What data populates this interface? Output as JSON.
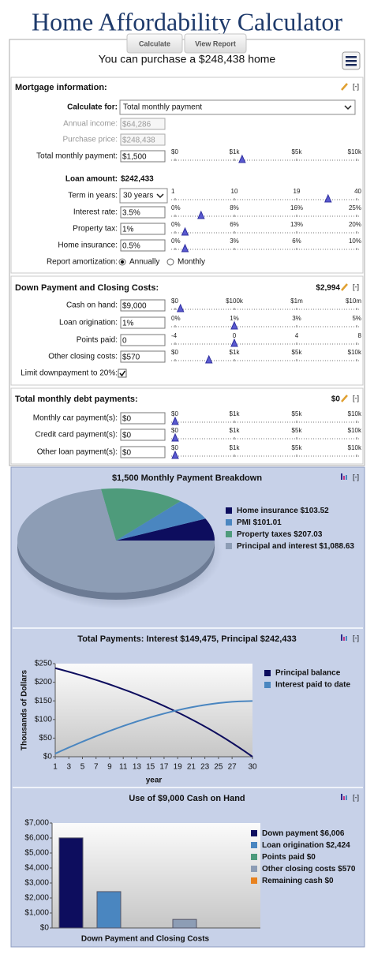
{
  "header": {
    "title": "Home Affordability Calculator",
    "buttons": [
      "Calculate",
      "View Report"
    ],
    "result": "You can purchase a $248,438 home"
  },
  "collapse": "[-]",
  "sections": [
    {
      "title": "Mortgage information:",
      "rows": [
        {
          "label": "Calculate for:",
          "kind": "select-wide",
          "input": "Total monthly payment"
        },
        {
          "label": "Annual income:",
          "kind": "disabled",
          "input": "$64,286"
        },
        {
          "label": "Purchase price:",
          "kind": "disabled",
          "input": "$248,438"
        },
        {
          "label": "Total monthly payment:",
          "kind": "text",
          "input": "$1,500",
          "slider": {
            "ticks": [
              {
                "value": 0,
                "label": "$0"
              },
              {
                "value": 1000,
                "label": "$1k"
              },
              {
                "value": 5000,
                "label": "$5k"
              },
              {
                "value": 10000,
                "label": "$10k"
              }
            ],
            "value": 1500
          }
        },
        {
          "label": "Loan amount:",
          "kind": "value",
          "input": "$242,433"
        },
        {
          "label": "Term in years:",
          "kind": "select",
          "input": "30 years",
          "slider": {
            "ticks": [
              1,
              10,
              19,
              40
            ],
            "value": 30
          }
        },
        {
          "label": "Interest rate:",
          "kind": "text",
          "input": "3.5%",
          "slider": {
            "ticks": [
              {
                "value": 0,
                "label": "0%"
              },
              {
                "value": 8,
                "label": "8%"
              },
              {
                "value": 16,
                "label": "16%"
              },
              {
                "value": 25,
                "label": "25%"
              }
            ],
            "value": 3.5
          }
        },
        {
          "label": "Property tax:",
          "kind": "text",
          "input": "1%",
          "slider": {
            "ticks": [
              {
                "value": 0,
                "label": "0%"
              },
              {
                "value": 6,
                "label": "6%"
              },
              {
                "value": 13,
                "label": "13%"
              },
              {
                "value": 20,
                "label": "20%"
              }
            ],
            "value": 1
          }
        },
        {
          "label": "Home insurance:",
          "kind": "text",
          "input": "0.5%",
          "slider": {
            "ticks": [
              {
                "value": 0,
                "label": "0%"
              },
              {
                "value": 3,
                "label": "3%"
              },
              {
                "value": 6,
                "label": "6%"
              },
              {
                "value": 10,
                "label": "10%"
              }
            ],
            "value": 0.5
          }
        },
        {
          "label": "Report amortization:",
          "kind": "radio",
          "options": [
            "Annually",
            "Monthly"
          ],
          "checked": 0
        }
      ]
    },
    {
      "title": "Down Payment and Closing Costs:",
      "total": "$2,994",
      "rows": [
        {
          "label": "Cash on hand:",
          "kind": "text",
          "input": "$9,000",
          "slider": {
            "ticks": [
              {
                "value": 0,
                "label": "$0"
              },
              {
                "value": 100000,
                "label": "$100k"
              },
              {
                "value": 1000000,
                "label": "$1m"
              },
              {
                "value": 10000000,
                "label": "$10m"
              }
            ],
            "value": 9000
          }
        },
        {
          "label": "Loan origination:",
          "kind": "text",
          "input": "1%",
          "slider": {
            "ticks": [
              {
                "value": 0,
                "label": "0%"
              },
              {
                "value": 1,
                "label": "1%"
              },
              {
                "value": 3,
                "label": "3%"
              },
              {
                "value": 5,
                "label": "5%"
              }
            ],
            "value": 1
          }
        },
        {
          "label": "Points paid:",
          "kind": "text",
          "input": "0",
          "slider": {
            "ticks": [
              -4,
              0,
              4,
              8
            ],
            "value": 0
          }
        },
        {
          "label": "Other closing costs:",
          "kind": "text",
          "input": "$570",
          "slider": {
            "ticks": [
              {
                "value": 0,
                "label": "$0"
              },
              {
                "value": 1000,
                "label": "$1k"
              },
              {
                "value": 5000,
                "label": "$5k"
              },
              {
                "value": 10000,
                "label": "$10k"
              }
            ],
            "value": 570
          }
        },
        {
          "label": "Limit downpayment to 20%:",
          "kind": "checkbox",
          "checked": true
        }
      ]
    },
    {
      "title": "Total monthly debt payments:",
      "total": "$0",
      "rows": [
        {
          "label": "Monthly car payment(s):",
          "kind": "text",
          "input": "$0",
          "slider": {
            "ticks": [
              {
                "value": 0,
                "label": "$0"
              },
              {
                "value": 1000,
                "label": "$1k"
              },
              {
                "value": 5000,
                "label": "$5k"
              },
              {
                "value": 10000,
                "label": "$10k"
              }
            ],
            "value": 0
          }
        },
        {
          "label": "Credit card payment(s):",
          "kind": "text",
          "input": "$0",
          "slider": {
            "ticks": [
              {
                "value": 0,
                "label": "$0"
              },
              {
                "value": 1000,
                "label": "$1k"
              },
              {
                "value": 5000,
                "label": "$5k"
              },
              {
                "value": 10000,
                "label": "$10k"
              }
            ],
            "value": 0
          }
        },
        {
          "label": "Other loan payment(s):",
          "kind": "text",
          "input": "$0",
          "slider": {
            "ticks": [
              {
                "value": 0,
                "label": "$0"
              },
              {
                "value": 1000,
                "label": "$1k"
              },
              {
                "value": 5000,
                "label": "$5k"
              },
              {
                "value": 10000,
                "label": "$10k"
              }
            ],
            "value": 0
          }
        }
      ]
    }
  ],
  "chart_data": [
    {
      "type": "pie",
      "title": "$1,500 Monthly Payment Breakdown",
      "categories": [
        "Home insurance",
        "PMI",
        "Property taxes",
        "Principal and interest"
      ],
      "values": [
        103.52,
        101.01,
        207.03,
        1088.63
      ],
      "value_labels": [
        "$103.52",
        "$101.01",
        "$207.03",
        "$1,088.63"
      ],
      "colors": [
        "#0d0d5e",
        "#4a86c0",
        "#4e9b7b",
        "#8d9db5"
      ]
    },
    {
      "type": "line",
      "title": "Total Payments: Interest $149,475, Principal $242,433",
      "xlabel": "year",
      "ylabel": "Thousands of Dollars",
      "x": [
        1,
        2,
        3,
        4,
        5,
        6,
        7,
        8,
        9,
        10,
        11,
        12,
        13,
        14,
        15,
        16,
        17,
        18,
        19,
        20,
        21,
        22,
        23,
        24,
        25,
        26,
        27,
        28,
        29,
        30
      ],
      "series": [
        {
          "name": "Principal balance",
          "color": "#0d0d5e",
          "values": [
            237.8,
            233.0,
            228.0,
            222.8,
            217.5,
            211.9,
            206.2,
            200.2,
            194.1,
            187.7,
            181.1,
            174.3,
            167.2,
            159.9,
            152.3,
            144.4,
            136.3,
            127.9,
            119.1,
            110.1,
            100.7,
            91.0,
            81.0,
            70.6,
            59.8,
            48.7,
            37.1,
            25.2,
            12.8,
            0
          ]
        },
        {
          "name": "Interest paid to date",
          "color": "#4a86c0",
          "values": [
            8.4,
            16.7,
            24.7,
            32.6,
            40.3,
            47.9,
            55.2,
            62.3,
            69.2,
            75.9,
            82.4,
            88.6,
            94.6,
            100.3,
            105.8,
            111.0,
            115.9,
            120.6,
            124.9,
            128.9,
            132.6,
            136.0,
            139.0,
            141.7,
            144.0,
            145.9,
            147.4,
            148.5,
            149.2,
            149.5
          ]
        }
      ],
      "xlim": [
        1,
        30
      ],
      "xticks": [
        1,
        3,
        5,
        7,
        9,
        11,
        13,
        15,
        17,
        19,
        21,
        23,
        25,
        27,
        30
      ],
      "ylim": [
        0,
        250
      ],
      "yticks": [
        {
          "value": 0,
          "label": "$0"
        },
        {
          "value": 50,
          "label": "$50"
        },
        {
          "value": 100,
          "label": "$100"
        },
        {
          "value": 150,
          "label": "$150"
        },
        {
          "value": 200,
          "label": "$200"
        },
        {
          "value": 250,
          "label": "$250"
        }
      ]
    },
    {
      "type": "bar",
      "title": "Use of $9,000 Cash on Hand",
      "xlabel": "Down Payment and Closing Costs",
      "categories": [
        "Down payment",
        "Loan origination",
        "Points paid",
        "Other closing costs",
        "Remaining cash"
      ],
      "values": [
        6006,
        2424,
        0,
        570,
        0
      ],
      "value_labels": [
        "$6,006",
        "$2,424",
        "$0",
        "$570",
        "$0"
      ],
      "colors": [
        "#0d0d5e",
        "#4a86c0",
        "#4e9b7b",
        "#8d9db5",
        "#e8821e"
      ],
      "ylim": [
        0,
        7000
      ],
      "yticks": [
        {
          "value": 0,
          "label": "$0"
        },
        {
          "value": 1000,
          "label": "$1,000"
        },
        {
          "value": 2000,
          "label": "$2,000"
        },
        {
          "value": 3000,
          "label": "$3,000"
        },
        {
          "value": 4000,
          "label": "$4,000"
        },
        {
          "value": 5000,
          "label": "$5,000"
        },
        {
          "value": 6000,
          "label": "$6,000"
        },
        {
          "value": 7000,
          "label": "$7,000"
        }
      ]
    }
  ]
}
